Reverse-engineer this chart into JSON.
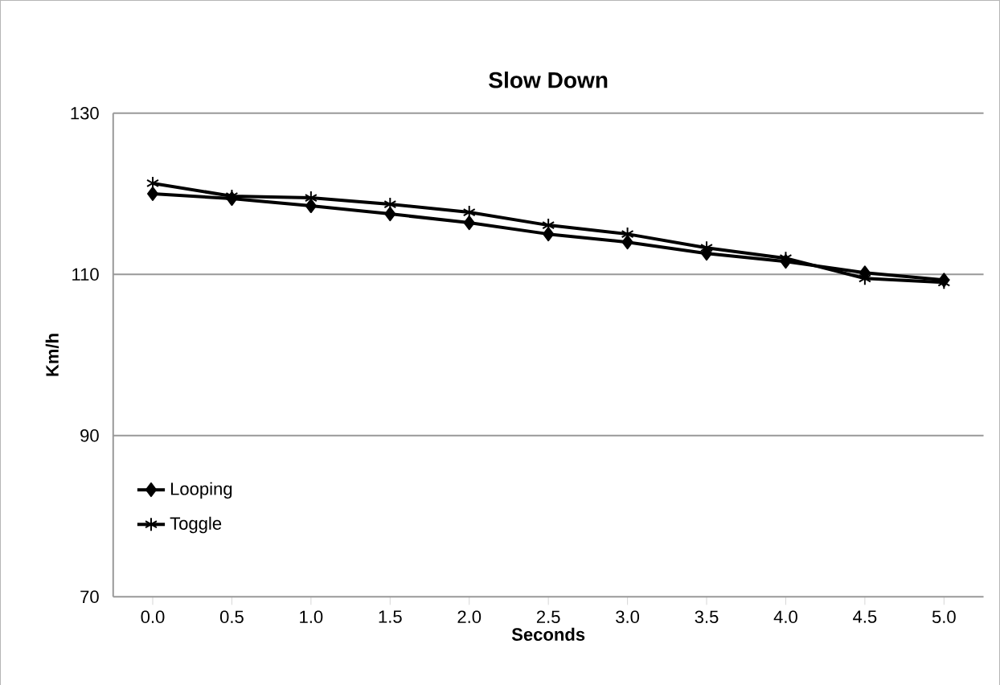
{
  "chart_data": {
    "type": "line",
    "title": "Slow Down",
    "xlabel": "Seconds",
    "ylabel": "Km/h",
    "categories": [
      "0.0",
      "0.5",
      "1.0",
      "1.5",
      "2.0",
      "2.5",
      "3.0",
      "3.5",
      "4.0",
      "4.5",
      "5.0"
    ],
    "series": [
      {
        "name": "Looping",
        "color": "#000000",
        "marker": "diamond",
        "values": [
          120,
          119.4,
          118.5,
          117.5,
          116.4,
          115,
          114,
          112.6,
          111.6,
          110.2,
          109.3
        ]
      },
      {
        "name": "Toggle",
        "color": "#000000",
        "marker": "cross",
        "values": [
          121.3,
          119.7,
          119.5,
          118.7,
          117.7,
          116.1,
          115,
          113.3,
          112,
          109.5,
          109
        ]
      }
    ],
    "ylim": [
      70,
      130
    ],
    "yticks": [
      70,
      90,
      110,
      130
    ],
    "grid": "y",
    "legend": "bottom left",
    "line_style": "solid"
  }
}
